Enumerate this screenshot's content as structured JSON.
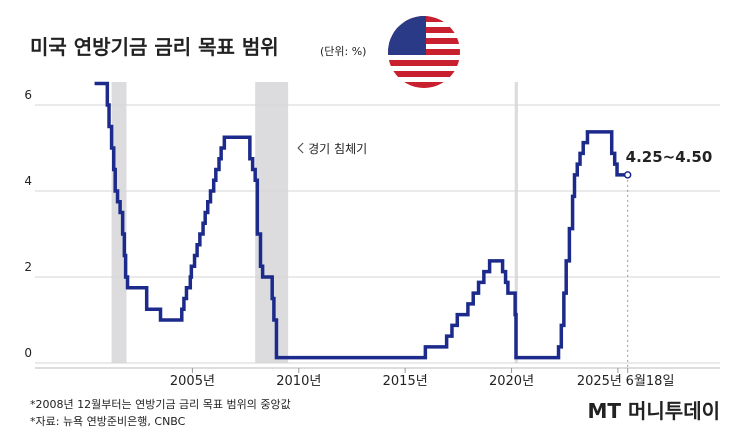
{
  "chart_data": {
    "type": "step-line",
    "title": "미국 연방기금 금리 목표 범위",
    "subtitle": "(단위: %)",
    "x": [
      2000.4,
      2001.0,
      2001.08,
      2001.2,
      2001.3,
      2001.37,
      2001.48,
      2001.6,
      2001.72,
      2001.8,
      2001.86,
      2001.95,
      2002.85,
      2003.5,
      2004.5,
      2004.6,
      2004.72,
      2004.9,
      2004.95,
      2005.1,
      2005.22,
      2005.35,
      2005.5,
      2005.6,
      2005.72,
      2005.85,
      2006.0,
      2006.1,
      2006.25,
      2006.35,
      2006.5,
      2007.7,
      2007.83,
      2007.95,
      2008.05,
      2008.2,
      2008.3,
      2008.75,
      2008.83,
      2008.95,
      2015.95,
      2016.95,
      2017.2,
      2017.45,
      2017.95,
      2018.2,
      2018.45,
      2018.7,
      2018.97,
      2019.58,
      2019.72,
      2019.83,
      2020.17,
      2020.21,
      2022.21,
      2022.34,
      2022.46,
      2022.57,
      2022.72,
      2022.87,
      2022.96,
      2023.09,
      2023.22,
      2023.37,
      2023.57,
      2024.71,
      2024.85,
      2024.96,
      2025.46
    ],
    "series": [
      {
        "name": "연방기금 금리",
        "color": "#1c2a8c",
        "values": [
          6.5,
          6.0,
          5.5,
          5.0,
          4.5,
          4.0,
          3.75,
          3.5,
          3.0,
          2.5,
          2.0,
          1.75,
          1.25,
          1.0,
          1.25,
          1.5,
          1.75,
          2.0,
          2.25,
          2.5,
          2.75,
          3.0,
          3.25,
          3.5,
          3.75,
          4.0,
          4.25,
          4.5,
          4.75,
          5.0,
          5.25,
          4.75,
          4.5,
          4.25,
          3.0,
          2.25,
          2.0,
          1.5,
          1.0,
          0.125,
          0.375,
          0.625,
          0.875,
          1.125,
          1.375,
          1.625,
          1.875,
          2.125,
          2.375,
          2.125,
          1.875,
          1.625,
          1.125,
          0.125,
          0.375,
          0.875,
          1.625,
          2.375,
          3.125,
          3.875,
          4.375,
          4.625,
          4.875,
          5.125,
          5.375,
          4.875,
          4.625,
          4.375,
          4.375
        ]
      }
    ],
    "recessions": [
      [
        2001.2,
        2001.9
      ],
      [
        2007.95,
        2009.5
      ],
      [
        2020.15,
        2020.3
      ]
    ],
    "recession_label": "경기 침체기",
    "end_label": "4.25~4.50",
    "xlim": [
      1997.6,
      2029.8
    ],
    "xticks": [
      {
        "value": 2005,
        "label": "2005년"
      },
      {
        "value": 2010,
        "label": "2010년"
      },
      {
        "value": 2015,
        "label": "2015년"
      },
      {
        "value": 2020,
        "label": "2020년"
      },
      {
        "value": 2025,
        "label": "2025년"
      },
      {
        "value": 2025.46,
        "label": "6월18일"
      }
    ],
    "ylim": [
      0,
      7
    ],
    "yticks": [
      0,
      2,
      4,
      6
    ],
    "grid": true,
    "notes": [
      "*2008년 12월부터는 연방기금 금리 목표 범위의 중앙값",
      "*자료: 뉴욕 연방준비은행, CNBC"
    ],
    "watermark": "MT 머니투데이"
  }
}
